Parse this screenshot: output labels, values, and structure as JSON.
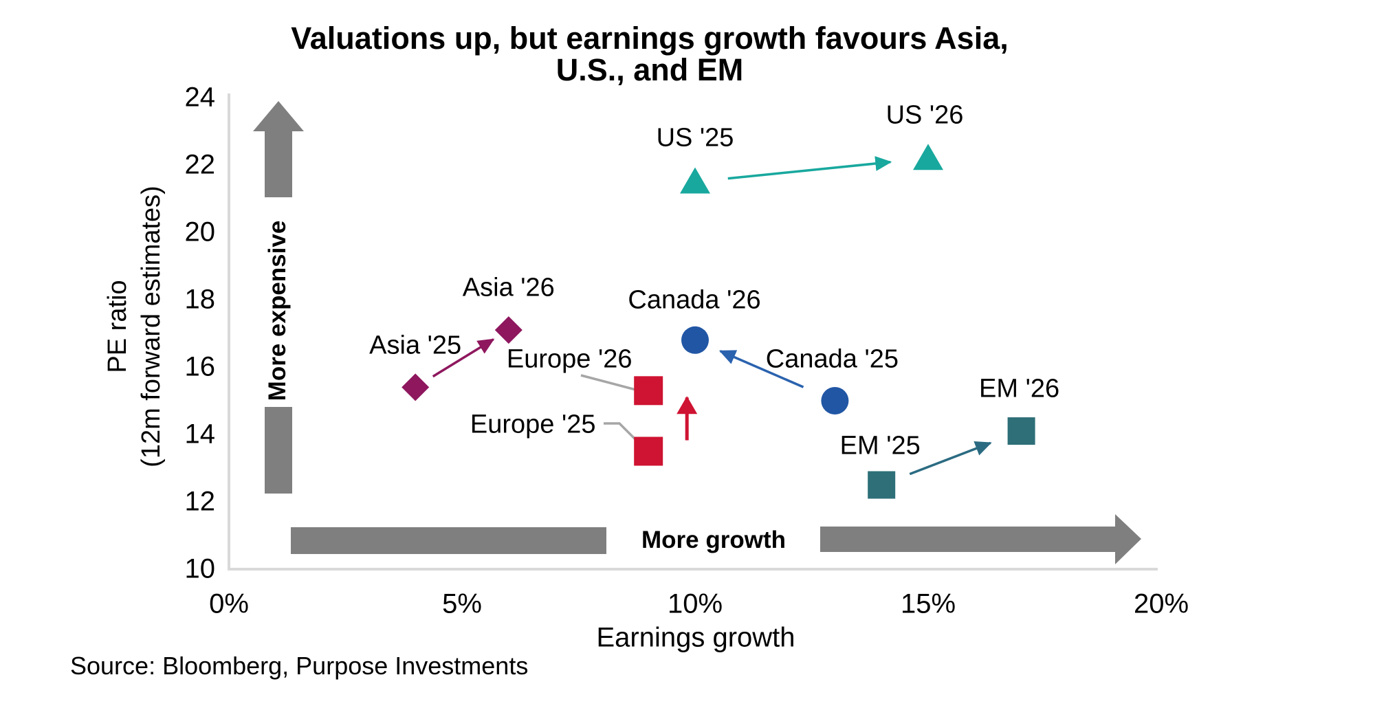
{
  "source_note": "Source: Bloomberg, Purpose Investments",
  "chart_data": {
    "type": "scatter",
    "title": "Valuations up, but earnings growth favours Asia, U.S., and EM",
    "title_lines": [
      "Valuations up, but earnings growth favours Asia,",
      "U.S., and EM"
    ],
    "xlabel": "Earnings growth",
    "ylabel": "PE ratio (12m forward estimates)",
    "ylabel_lines": [
      "PE ratio",
      "(12m forward estimates)"
    ],
    "x_axis": {
      "min_pct": 0,
      "max_pct": 20,
      "ticks": [
        "0%",
        "5%",
        "10%",
        "15%",
        "20%"
      ],
      "tick_values": [
        0,
        5,
        10,
        15,
        20
      ]
    },
    "y_axis": {
      "min": 10,
      "max": 24,
      "ticks": [
        10,
        12,
        14,
        16,
        18,
        20,
        22,
        24
      ]
    },
    "grid": false,
    "legend_position": "none",
    "annotations": {
      "y_direction": "More expensive",
      "x_direction": "More growth"
    },
    "colors": {
      "axis_line": "#D9D9D9",
      "direction_arrows": "#7F7F7F",
      "leader_line": "#A6A6A6",
      "text": "#000000"
    },
    "series": [
      {
        "name": "US",
        "marker": "triangle",
        "color": "#18A89E",
        "arrow_color": "#18A89E",
        "points": [
          {
            "label": "US '25",
            "x_pct": 10,
            "y_pe": 21.5
          },
          {
            "label": "US '26",
            "x_pct": 15,
            "y_pe": 22.2
          }
        ]
      },
      {
        "name": "Asia",
        "marker": "diamond",
        "color": "#8E175E",
        "arrow_color": "#8E175E",
        "points": [
          {
            "label": "Asia '25",
            "x_pct": 4,
            "y_pe": 15.4
          },
          {
            "label": "Asia '26",
            "x_pct": 6,
            "y_pe": 17.1
          }
        ]
      },
      {
        "name": "Canada",
        "marker": "circle",
        "color": "#2156A4",
        "arrow_color": "#2A62AE",
        "points": [
          {
            "label": "Canada '25",
            "x_pct": 13,
            "y_pe": 15.0
          },
          {
            "label": "Canada '26",
            "x_pct": 10,
            "y_pe": 16.8
          }
        ]
      },
      {
        "name": "Europe",
        "marker": "square",
        "color": "#CF1332",
        "arrow_color": "#CF1332",
        "points": [
          {
            "label": "Europe '25",
            "x_pct": 9,
            "y_pe": 13.5
          },
          {
            "label": "Europe '26",
            "x_pct": 9,
            "y_pe": 15.3
          }
        ]
      },
      {
        "name": "EM",
        "marker": "square",
        "color": "#2E6F78",
        "arrow_color": "#2B6B82",
        "points": [
          {
            "label": "EM '25",
            "x_pct": 14,
            "y_pe": 12.5
          },
          {
            "label": "EM '26",
            "x_pct": 17,
            "y_pe": 14.1
          }
        ]
      }
    ]
  }
}
